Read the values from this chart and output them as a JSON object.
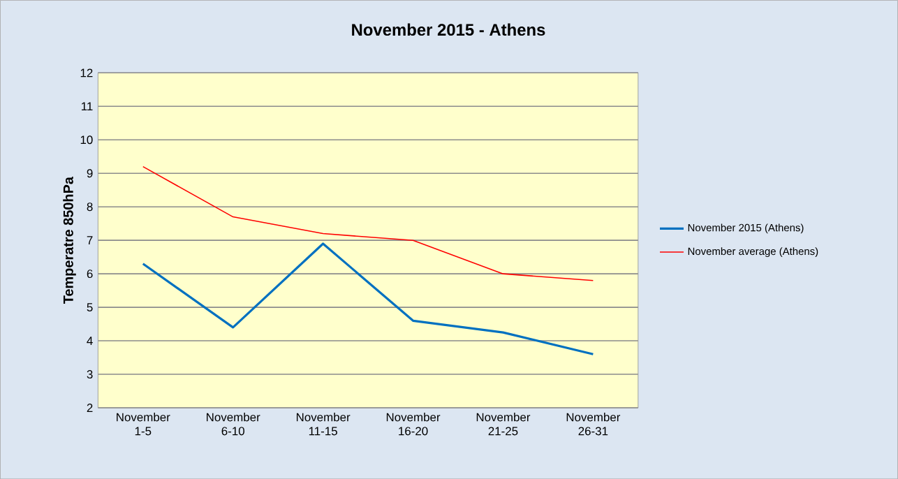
{
  "chart_data": {
    "type": "line",
    "title": "November 2015 - Athens",
    "ylabel": "Temperatre 850hPa",
    "categories": [
      "November 1-5",
      "November 6-10",
      "November 11-15",
      "November 16-20",
      "November 21-25",
      "November 26-31"
    ],
    "series": [
      {
        "name": "November 2015 (Athens)",
        "color": "#0070c0",
        "values": [
          6.3,
          4.4,
          6.9,
          4.6,
          4.25,
          3.6
        ]
      },
      {
        "name": "November average (Athens)",
        "color": "#ff0000",
        "values": [
          9.2,
          7.7,
          7.2,
          7.0,
          6.0,
          5.8
        ]
      }
    ],
    "ylim": [
      2,
      12
    ],
    "yticks": [
      2,
      3,
      4,
      5,
      6,
      7,
      8,
      9,
      10,
      11,
      12
    ],
    "grid": "y",
    "legend": "right",
    "marker": "none",
    "line_style": "solid"
  }
}
